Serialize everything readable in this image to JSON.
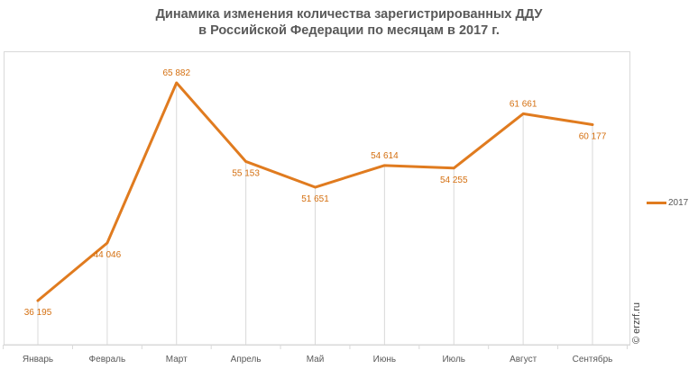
{
  "title": {
    "line1": "Динамика изменения количества зарегистрированных ДДУ",
    "line2": "в Российской Федерации по месяцам в 2017 г."
  },
  "credit": "© erzrf.ru",
  "colors": {
    "series": "#e07b1f",
    "label": "#d46f10",
    "grid": "#d9d9d9",
    "axis_text": "#595959"
  },
  "chart_data": {
    "type": "line",
    "title": "Динамика изменения количества зарегистрированных ДДУ в Российской Федерации по месяцам в 2017 г.",
    "categories": [
      "Январь",
      "Февраль",
      "Март",
      "Апрель",
      "Май",
      "Июнь",
      "Июль",
      "Август",
      "Сентябрь"
    ],
    "series": [
      {
        "name": "2017",
        "values": [
          36195,
          44046,
          65882,
          55153,
          51651,
          54614,
          54255,
          61661,
          60177
        ],
        "labels": [
          "36 195",
          "44 046",
          "65 882",
          "55 153",
          "51 651",
          "54 614",
          "54 255",
          "61 661",
          "60 177"
        ]
      }
    ],
    "xlabel": "",
    "ylabel": "",
    "ylim": [
      32000,
      70000
    ],
    "legend_position": "right",
    "grid": "vertical drop lines"
  }
}
